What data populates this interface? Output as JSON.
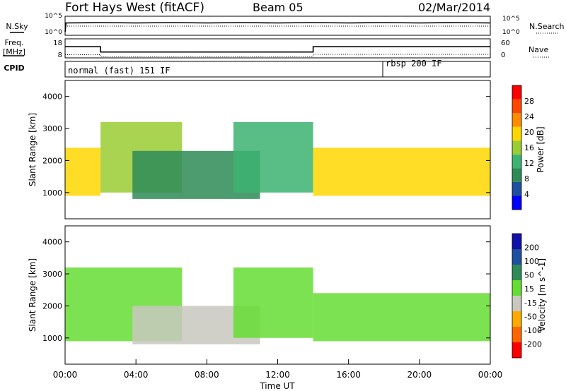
{
  "header": {
    "title": "Fort Hays West (fitACF)",
    "beam": "Beam 05",
    "date": "02/Mar/2014"
  },
  "status": {
    "nsky_label": "N.Sky",
    "nsearch_label": "N.Search",
    "freq_label_1": "Freq.",
    "freq_label_2": "[MHz]",
    "nave_label": "Nave",
    "cpid_label": "CPID",
    "nsky_ticks": [
      "10^5",
      "10^0"
    ],
    "nsearch_ticks": [
      "10^5",
      "10^0"
    ],
    "freq_ticks": [
      "18",
      "8"
    ],
    "nave_ticks": [
      "60",
      "0"
    ],
    "cpid_modes": [
      {
        "label": "normal (fast) 151 IF",
        "start": 0,
        "end": 18
      },
      {
        "label": "rbsp 200 IF",
        "start": 18,
        "end": 24
      }
    ]
  },
  "chart_data": [
    {
      "type": "line",
      "title": "N.Sky / N.Search",
      "x": [
        0,
        0.05,
        2,
        4,
        6,
        8,
        10,
        12,
        14,
        16,
        18,
        20,
        22,
        24
      ],
      "series": [
        {
          "name": "N.Sky",
          "values": [
            1,
            3.5,
            3.6,
            3.5,
            3.6,
            3.5,
            3.6,
            3.5,
            3.6,
            3.5,
            3.6,
            3.5,
            3.6,
            3.5
          ]
        }
      ],
      "xlim": [
        0,
        24
      ]
    },
    {
      "type": "line",
      "title": "Freq. / Nave",
      "x": [
        0,
        2,
        2,
        14,
        14,
        24
      ],
      "series": [
        {
          "name": "Freq.",
          "values": [
            14.2,
            14.2,
            10.3,
            10.3,
            14.2,
            14.2
          ]
        },
        {
          "name": "Nave",
          "values": [
            10,
            10,
            4,
            4,
            11,
            11
          ]
        }
      ],
      "xlim": [
        0,
        24
      ]
    },
    {
      "type": "heatmap",
      "quantity": "Power",
      "ylabel": "Slant Range [km]",
      "colorbar_label": "Power [dB]",
      "colorbar_ticks": [
        "28",
        "24",
        "20",
        "16",
        "12",
        "8",
        "4"
      ],
      "clim": [
        0,
        32
      ],
      "xlim": [
        0,
        24
      ],
      "ylim": [
        180,
        4500
      ],
      "yticks": [
        "4000",
        "3000",
        "2000",
        "1000"
      ],
      "regions": [
        {
          "t0": 0,
          "t1": 2,
          "r0": 900,
          "r1": 2400,
          "value": 18
        },
        {
          "t0": 2,
          "t1": 6.6,
          "r0": 1000,
          "r1": 3200,
          "value": 16
        },
        {
          "t0": 3.8,
          "t1": 11,
          "r0": 800,
          "r1": 2300,
          "value": 10
        },
        {
          "t0": 9.5,
          "t1": 14,
          "r0": 1000,
          "r1": 3200,
          "value": 14
        },
        {
          "t0": 14,
          "t1": 24,
          "r0": 900,
          "r1": 2400,
          "value": 20
        }
      ]
    },
    {
      "type": "heatmap",
      "quantity": "Velocity",
      "ylabel": "Slant Range [km]",
      "colorbar_label": "Velocity [m s^-1]",
      "colorbar_ticks": [
        "200",
        "100",
        "50",
        "15",
        "-15",
        "-50",
        "-100",
        "-200"
      ],
      "clim": [
        -250,
        250
      ],
      "xlim": [
        0,
        24
      ],
      "ylim": [
        180,
        4500
      ],
      "yticks": [
        "4000",
        "3000",
        "2000",
        "1000"
      ],
      "xticks": [
        "00:00",
        "04:00",
        "08:00",
        "12:00",
        "16:00",
        "20:00",
        "00:00"
      ],
      "xlabel": "Time UT",
      "regions": [
        {
          "t0": 0,
          "t1": 6.6,
          "r0": 900,
          "r1": 3200,
          "value": 0
        },
        {
          "t0": 3.8,
          "t1": 11,
          "r0": 800,
          "r1": 2000,
          "value": -60
        },
        {
          "t0": 9.5,
          "t1": 14,
          "r0": 1000,
          "r1": 3200,
          "value": 30
        },
        {
          "t0": 14,
          "t1": 24,
          "r0": 900,
          "r1": 2400,
          "value": 0
        }
      ]
    }
  ],
  "colors": {
    "power_scale": [
      "#0000ff",
      "#1f4fa0",
      "#2e8b57",
      "#3cb371",
      "#9acd32",
      "#ffd700",
      "#ff8c00",
      "#ff4500",
      "#ff0000"
    ],
    "velocity_scale": [
      "#ff0000",
      "#ff6600",
      "#ffaa00",
      "#c8c8c0",
      "#66dd33",
      "#2e8b57",
      "#1f4fa0",
      "#1010aa"
    ],
    "ground_scatter": "#c8c8c0"
  }
}
